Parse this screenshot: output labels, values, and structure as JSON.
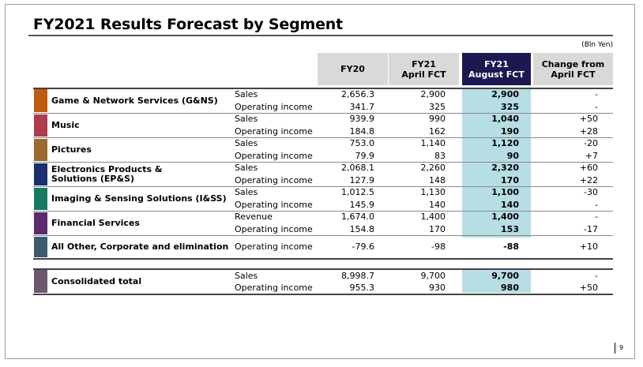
{
  "title": "FY2021 Results Forecast by Segment",
  "unit": "(Bln Yen)",
  "headers": {
    "fy20": "FY20",
    "apr_1": "FY21",
    "apr_2": "April FCT",
    "aug_1": "FY21",
    "aug_2": "August FCT",
    "chg_1": "Change from",
    "chg_2": "April FCT"
  },
  "colors": {
    "header_gray": "#d9d9d9",
    "header_navy": "#1b1852",
    "highlight": "#b7dde5",
    "gns": "#c05a0e",
    "music": "#b03a4e",
    "pictures": "#9b6a2c",
    "eps": "#1b2f6e",
    "iss": "#157a62",
    "fs": "#5c2a6e",
    "other": "#3e5a6e",
    "total": "#6e5870"
  },
  "segments": [
    {
      "name": "Game & Network Services (G&NS)",
      "rows": [
        {
          "label": "Sales",
          "fy20": "2,656.3",
          "apr": "2,900",
          "aug": "2,900",
          "chg": "-"
        },
        {
          "label": "Operating income",
          "fy20": "341.7",
          "apr": "325",
          "aug": "325",
          "chg": "-"
        }
      ]
    },
    {
      "name": "Music",
      "rows": [
        {
          "label": "Sales",
          "fy20": "939.9",
          "apr": "990",
          "aug": "1,040",
          "chg": "+50"
        },
        {
          "label": "Operating income",
          "fy20": "184.8",
          "apr": "162",
          "aug": "190",
          "chg": "+28"
        }
      ]
    },
    {
      "name": "Pictures",
      "rows": [
        {
          "label": "Sales",
          "fy20": "753.0",
          "apr": "1,140",
          "aug": "1,120",
          "chg": "-20"
        },
        {
          "label": "Operating income",
          "fy20": "79.9",
          "apr": "83",
          "aug": "90",
          "chg": "+7"
        }
      ]
    },
    {
      "name": "Electronics Products & Solutions (EP&S)",
      "rows": [
        {
          "label": "Sales",
          "fy20": "2,068.1",
          "apr": "2,260",
          "aug": "2,320",
          "chg": "+60"
        },
        {
          "label": "Operating income",
          "fy20": "127.9",
          "apr": "148",
          "aug": "170",
          "chg": "+22"
        }
      ]
    },
    {
      "name": "Imaging & Sensing Solutions (I&SS)",
      "rows": [
        {
          "label": "Sales",
          "fy20": "1,012.5",
          "apr": "1,130",
          "aug": "1,100",
          "chg": "-30"
        },
        {
          "label": "Operating income",
          "fy20": "145.9",
          "apr": "140",
          "aug": "140",
          "chg": "-"
        }
      ]
    },
    {
      "name": "Financial Services",
      "rows": [
        {
          "label": "Revenue",
          "fy20": "1,674.0",
          "apr": "1,400",
          "aug": "1,400",
          "chg": "-"
        },
        {
          "label": "Operating income",
          "fy20": "154.8",
          "apr": "170",
          "aug": "153",
          "chg": "-17"
        }
      ]
    },
    {
      "name": "All Other, Corporate and elimination",
      "rows": [
        {
          "label": "Operating income",
          "fy20": "-79.6",
          "apr": "-98",
          "aug": "-88",
          "chg": "+10"
        }
      ]
    }
  ],
  "total": {
    "name": "Consolidated total",
    "rows": [
      {
        "label": "Sales",
        "fy20": "8,998.7",
        "apr": "9,700",
        "aug": "9,700",
        "chg": "-"
      },
      {
        "label": "Operating income",
        "fy20": "955.3",
        "apr": "930",
        "aug": "980",
        "chg": "+50"
      }
    ]
  },
  "page_number": "9"
}
